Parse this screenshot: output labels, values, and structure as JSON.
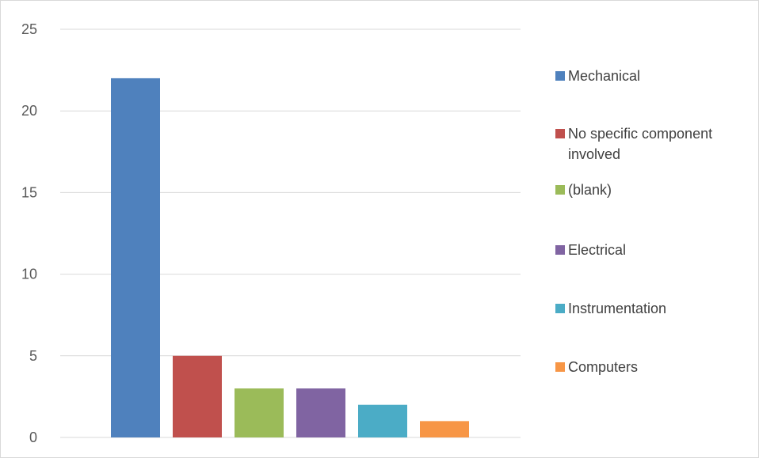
{
  "chart_data": {
    "type": "bar",
    "title": "",
    "xlabel": "",
    "ylabel": "",
    "ylim": [
      0,
      25
    ],
    "yticks": [
      0,
      5,
      10,
      15,
      20,
      25
    ],
    "grid": true,
    "legend_position": "right",
    "series": [
      {
        "name": "Mechanical",
        "value": 22,
        "color": "#4F81BD"
      },
      {
        "name": "No specific component involved",
        "value": 5,
        "color": "#C0504D"
      },
      {
        "name": "(blank)",
        "value": 3,
        "color": "#9BBB59"
      },
      {
        "name": "Electrical",
        "value": 3,
        "color": "#8064A2"
      },
      {
        "name": "Instrumentation",
        "value": 2,
        "color": "#4BACC6"
      },
      {
        "name": "Computers",
        "value": 1,
        "color": "#F79646"
      }
    ]
  }
}
